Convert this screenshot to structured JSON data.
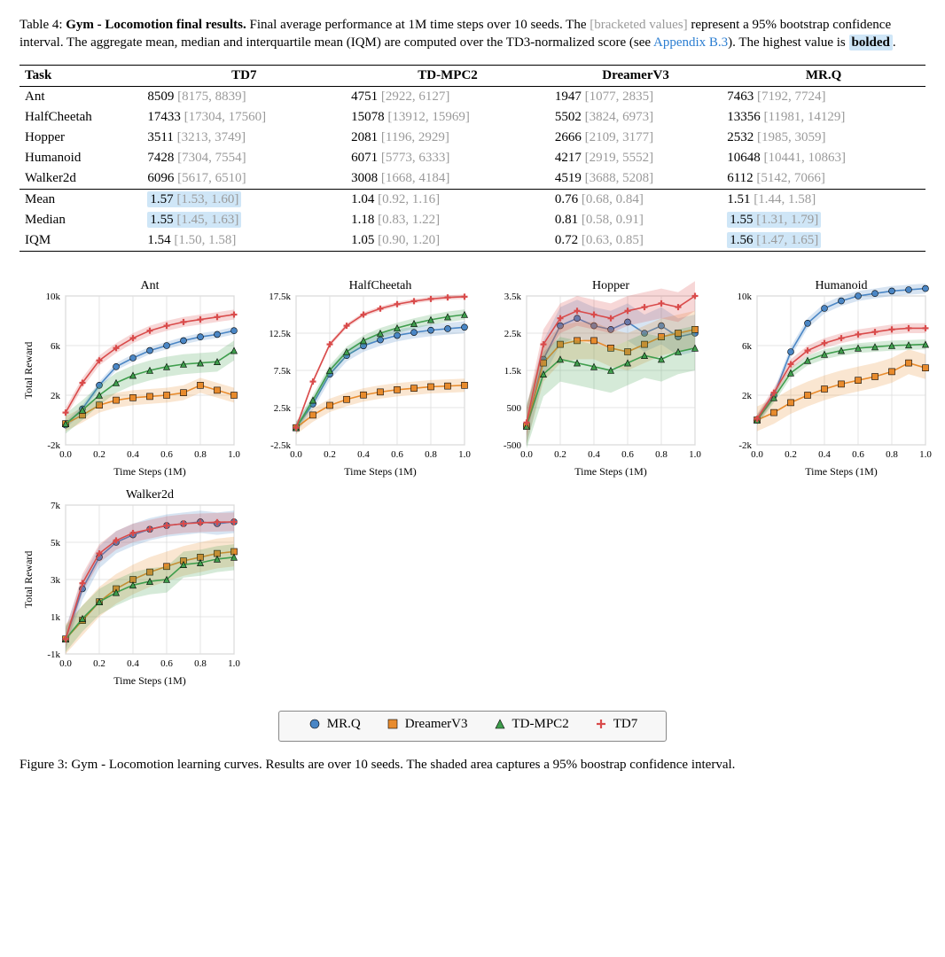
{
  "table_caption": {
    "prefix": "Table 4: ",
    "bold_title": "Gym - Locomotion final results.",
    "text1": " Final average performance at 1M time steps over 10 seeds. The ",
    "bracket": "[bracketed values]",
    "text2": " represent a 95% bootstrap confidence interval. The aggregate mean, median and interquartile mean (IQM) are computed over the TD3-normalized score (see ",
    "link": "Appendix B.3",
    "text3": "). The highest value is ",
    "bolded": "bolded",
    "text4": "."
  },
  "table": {
    "columns": [
      "Task",
      "TD7",
      "TD-MPC2",
      "DreamerV3",
      "MR.Q"
    ],
    "rows": [
      {
        "task": "Ant",
        "TD7": {
          "v": "8509",
          "ci": "[8175, 8839]",
          "hl": false
        },
        "TDMPC2": {
          "v": "4751",
          "ci": "[2922, 6127]",
          "hl": false
        },
        "DreamerV3": {
          "v": "1947",
          "ci": "[1077, 2835]",
          "hl": false
        },
        "MRQ": {
          "v": "7463",
          "ci": "[7192, 7724]",
          "hl": false
        }
      },
      {
        "task": "HalfCheetah",
        "TD7": {
          "v": "17433",
          "ci": "[17304, 17560]",
          "hl": false
        },
        "TDMPC2": {
          "v": "15078",
          "ci": "[13912, 15969]",
          "hl": false
        },
        "DreamerV3": {
          "v": "5502",
          "ci": "[3824, 6973]",
          "hl": false
        },
        "MRQ": {
          "v": "13356",
          "ci": "[11981, 14129]",
          "hl": false
        }
      },
      {
        "task": "Hopper",
        "TD7": {
          "v": "3511",
          "ci": "[3213, 3749]",
          "hl": false
        },
        "TDMPC2": {
          "v": "2081",
          "ci": "[1196, 2929]",
          "hl": false
        },
        "DreamerV3": {
          "v": "2666",
          "ci": "[2109, 3177]",
          "hl": false
        },
        "MRQ": {
          "v": "2532",
          "ci": "[1985, 3059]",
          "hl": false
        }
      },
      {
        "task": "Humanoid",
        "TD7": {
          "v": "7428",
          "ci": "[7304, 7554]",
          "hl": false
        },
        "TDMPC2": {
          "v": "6071",
          "ci": "[5773, 6333]",
          "hl": false
        },
        "DreamerV3": {
          "v": "4217",
          "ci": "[2919, 5552]",
          "hl": false
        },
        "MRQ": {
          "v": "10648",
          "ci": "[10441, 10863]",
          "hl": false
        }
      },
      {
        "task": "Walker2d",
        "TD7": {
          "v": "6096",
          "ci": "[5617, 6510]",
          "hl": false
        },
        "TDMPC2": {
          "v": "3008",
          "ci": "[1668, 4184]",
          "hl": false
        },
        "DreamerV3": {
          "v": "4519",
          "ci": "[3688, 5208]",
          "hl": false
        },
        "MRQ": {
          "v": "6112",
          "ci": "[5142, 7066]",
          "hl": false
        }
      }
    ],
    "agg": [
      {
        "task": "Mean",
        "TD7": {
          "v": "1.57",
          "ci": "[1.53, 1.60]",
          "hl": true
        },
        "TDMPC2": {
          "v": "1.04",
          "ci": "[0.92, 1.16]",
          "hl": false
        },
        "DreamerV3": {
          "v": "0.76",
          "ci": "[0.68, 0.84]",
          "hl": false
        },
        "MRQ": {
          "v": "1.51",
          "ci": "[1.44, 1.58]",
          "hl": false
        }
      },
      {
        "task": "Median",
        "TD7": {
          "v": "1.55",
          "ci": "[1.45, 1.63]",
          "hl": true
        },
        "TDMPC2": {
          "v": "1.18",
          "ci": "[0.83, 1.22]",
          "hl": false
        },
        "DreamerV3": {
          "v": "0.81",
          "ci": "[0.58, 0.91]",
          "hl": false
        },
        "MRQ": {
          "v": "1.55",
          "ci": "[1.31, 1.79]",
          "hl": true
        }
      },
      {
        "task": "IQM",
        "TD7": {
          "v": "1.54",
          "ci": "[1.50, 1.58]",
          "hl": false
        },
        "TDMPC2": {
          "v": "1.05",
          "ci": "[0.90, 1.20]",
          "hl": false
        },
        "DreamerV3": {
          "v": "0.72",
          "ci": "[0.63, 0.85]",
          "hl": false
        },
        "MRQ": {
          "v": "1.56",
          "ci": "[1.47, 1.65]",
          "hl": true
        }
      }
    ]
  },
  "charts": {
    "xlim": [
      0.0,
      1.0
    ],
    "xticks": [
      0.0,
      0.2,
      0.4,
      0.6,
      0.8,
      1.0
    ],
    "xlabel": "Time Steps (1M)",
    "ylabel": "Total Reward",
    "title_fontsize": 14,
    "label_fontsize": 12,
    "tick_fontsize": 11,
    "background_color": "#ffffff",
    "grid_color": "#dddddd",
    "line_width": 1.6,
    "marker_size": 5,
    "band_opacity": 0.22,
    "series": [
      {
        "name": "MR.Q",
        "color": "#4a86c5",
        "marker": "circle"
      },
      {
        "name": "DreamerV3",
        "color": "#e88b2d",
        "marker": "square"
      },
      {
        "name": "TD-MPC2",
        "color": "#3f9e4d",
        "marker": "triangle"
      },
      {
        "name": "TD7",
        "color": "#d94b4b",
        "marker": "plus"
      }
    ],
    "panels": [
      {
        "title": "Ant",
        "ylim": [
          -2000,
          10000
        ],
        "yticks": [
          -2000,
          2000,
          6000,
          10000
        ],
        "ytick_labels": [
          "-2k",
          "2k",
          "6k",
          "10k"
        ],
        "data": {
          "MR.Q": {
            "y": [
              -400,
              900,
              2800,
              4300,
              5000,
              5600,
              6000,
              6400,
              6700,
              6900,
              7200
            ],
            "lo_off": 300,
            "hi_off": 300
          },
          "DreamerV3": {
            "y": [
              -300,
              400,
              1200,
              1600,
              1800,
              1900,
              2000,
              2200,
              2800,
              2400,
              2000
            ],
            "lo_off": 600,
            "hi_off": 600
          },
          "TD-MPC2": {
            "y": [
              -300,
              800,
              2000,
              3000,
              3600,
              4000,
              4300,
              4500,
              4600,
              4700,
              5600
            ],
            "lo_off": 800,
            "hi_off": 800
          },
          "TD7": {
            "y": [
              600,
              3000,
              4800,
              5800,
              6600,
              7200,
              7600,
              7900,
              8100,
              8300,
              8500
            ],
            "lo_off": 400,
            "hi_off": 400
          }
        }
      },
      {
        "title": "HalfCheetah",
        "ylim": [
          -2500,
          17500
        ],
        "yticks": [
          -2500,
          2500,
          7500,
          12500,
          17500
        ],
        "ytick_labels": [
          "-2.5k",
          "2.5k",
          "7.5k",
          "12.5k",
          "17.5k"
        ],
        "data": {
          "MR.Q": {
            "y": [
              -200,
              3000,
              7000,
              9500,
              10800,
              11600,
              12200,
              12600,
              12900,
              13100,
              13300
            ],
            "lo_off": 800,
            "hi_off": 800
          },
          "DreamerV3": {
            "y": [
              -200,
              1500,
              2800,
              3600,
              4200,
              4600,
              4900,
              5100,
              5300,
              5400,
              5500
            ],
            "lo_off": 900,
            "hi_off": 900
          },
          "TD-MPC2": {
            "y": [
              -200,
              3500,
              7500,
              10000,
              11500,
              12500,
              13200,
              13800,
              14300,
              14700,
              15000
            ],
            "lo_off": 700,
            "hi_off": 700
          },
          "TD7": {
            "y": [
              -200,
              6000,
              11000,
              13500,
              15000,
              15800,
              16400,
              16800,
              17100,
              17300,
              17400
            ],
            "lo_off": 300,
            "hi_off": 300
          }
        }
      },
      {
        "title": "Hopper",
        "ylim": [
          -500,
          3500
        ],
        "yticks": [
          -500,
          500,
          1500,
          2500,
          3500
        ],
        "ytick_labels": [
          "-500",
          "500",
          "1.5k",
          "2.5k",
          "3.5k"
        ],
        "data": {
          "MR.Q": {
            "y": [
              0,
              1800,
              2700,
              2900,
              2700,
              2600,
              2800,
              2500,
              2700,
              2400,
              2500
            ],
            "lo_off": 500,
            "hi_off": 500
          },
          "DreamerV3": {
            "y": [
              0,
              1700,
              2200,
              2300,
              2300,
              2100,
              2000,
              2200,
              2400,
              2500,
              2600
            ],
            "lo_off": 500,
            "hi_off": 500
          },
          "TD-MPC2": {
            "y": [
              0,
              1400,
              1800,
              1700,
              1600,
              1500,
              1700,
              1900,
              1800,
              2000,
              2100
            ],
            "lo_off": 600,
            "hi_off": 600
          },
          "TD7": {
            "y": [
              100,
              2200,
              2900,
              3100,
              3000,
              2900,
              3100,
              3200,
              3300,
              3200,
              3500
            ],
            "lo_off": 400,
            "hi_off": 400
          }
        }
      },
      {
        "title": "Humanoid",
        "ylim": [
          -2000,
          10000
        ],
        "yticks": [
          -2000,
          2000,
          6000,
          10000
        ],
        "ytick_labels": [
          "-2k",
          "2k",
          "6k",
          "10k"
        ],
        "data": {
          "MR.Q": {
            "y": [
              0,
              2000,
              5500,
              7800,
              9000,
              9600,
              10000,
              10200,
              10400,
              10500,
              10600
            ],
            "lo_off": 400,
            "hi_off": 400
          },
          "DreamerV3": {
            "y": [
              0,
              600,
              1400,
              2000,
              2500,
              2900,
              3200,
              3500,
              3900,
              4600,
              4200
            ],
            "lo_off": 900,
            "hi_off": 1100
          },
          "TD-MPC2": {
            "y": [
              0,
              1800,
              3800,
              4800,
              5300,
              5600,
              5800,
              5900,
              6000,
              6050,
              6100
            ],
            "lo_off": 400,
            "hi_off": 400
          },
          "TD7": {
            "y": [
              100,
              2200,
              4500,
              5600,
              6200,
              6600,
              6900,
              7100,
              7300,
              7400,
              7400
            ],
            "lo_off": 400,
            "hi_off": 400
          }
        }
      },
      {
        "title": "Walker2d",
        "ylim": [
          -1000,
          7000
        ],
        "yticks": [
          -1000,
          1000,
          3000,
          5000,
          7000
        ],
        "ytick_labels": [
          "-1k",
          "1k",
          "3k",
          "5k",
          "7k"
        ],
        "data": {
          "MR.Q": {
            "y": [
              -200,
              2500,
              4200,
              5000,
              5400,
              5700,
              5900,
              6000,
              6100,
              6000,
              6100
            ],
            "lo_off": 600,
            "hi_off": 600
          },
          "DreamerV3": {
            "y": [
              -200,
              800,
              1800,
              2500,
              3000,
              3400,
              3700,
              4000,
              4200,
              4400,
              4500
            ],
            "lo_off": 800,
            "hi_off": 800
          },
          "TD-MPC2": {
            "y": [
              -200,
              900,
              1800,
              2300,
              2700,
              2900,
              3000,
              3800,
              3900,
              4100,
              4200
            ],
            "lo_off": 700,
            "hi_off": 700
          },
          "TD7": {
            "y": [
              -200,
              2800,
              4400,
              5100,
              5500,
              5700,
              5900,
              6000,
              6050,
              6080,
              6100
            ],
            "lo_off": 500,
            "hi_off": 500
          }
        }
      }
    ]
  },
  "legend": {
    "items": [
      "MR.Q",
      "DreamerV3",
      "TD-MPC2",
      "TD7"
    ],
    "markers": {
      "MR.Q": "circle",
      "DreamerV3": "square",
      "TD-MPC2": "triangle",
      "TD7": "plus"
    },
    "colors": {
      "MR.Q": "#4a86c5",
      "DreamerV3": "#e88b2d",
      "TD-MPC2": "#3f9e4d",
      "TD7": "#d94b4b"
    }
  },
  "figure_caption": {
    "prefix": "Figure 3: ",
    "bold_title": "Gym - Locomotion learning curves.",
    "text": " Results are over 10 seeds. The shaded area captures a 95% boostrap confidence interval."
  }
}
